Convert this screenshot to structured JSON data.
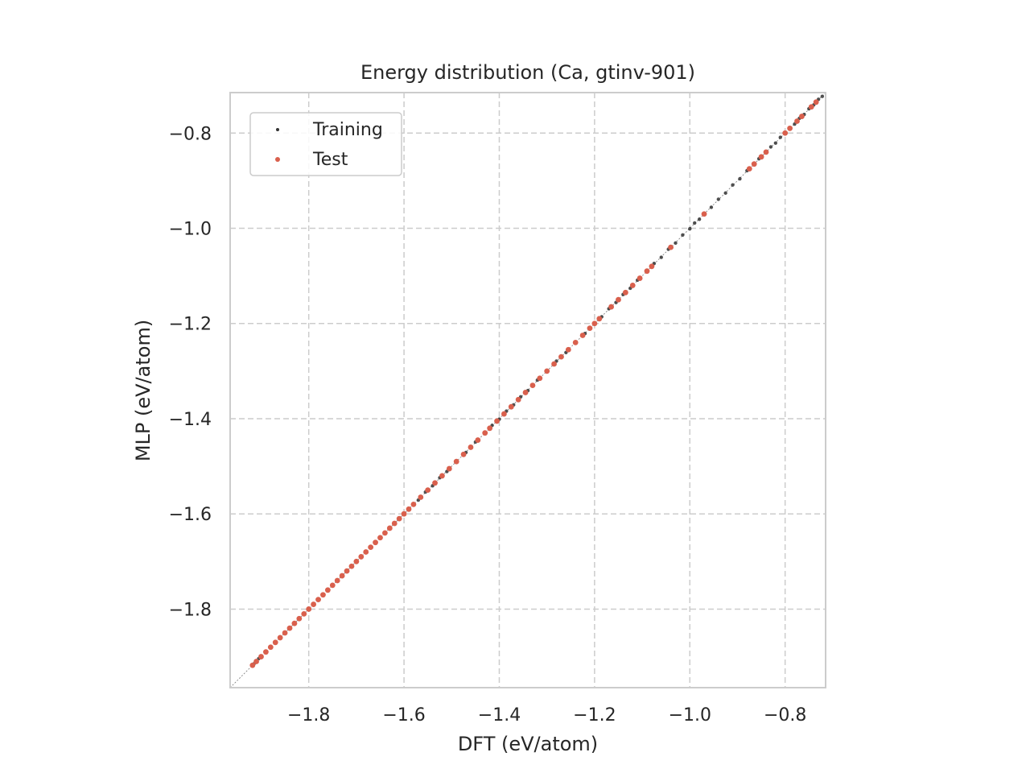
{
  "chart_data": {
    "type": "scatter",
    "title": "Energy distribution (Ca, gtinv-901)",
    "xlabel": "DFT (eV/atom)",
    "ylabel": "MLP (eV/atom)",
    "xlim": [
      -1.965,
      -0.715
    ],
    "ylim": [
      -1.965,
      -0.715
    ],
    "x_ticks": [
      -1.8,
      -1.6,
      -1.4,
      -1.2,
      -1.0,
      -0.8
    ],
    "y_ticks": [
      -1.8,
      -1.6,
      -1.4,
      -1.2,
      -1.0,
      -0.8
    ],
    "x_tick_labels": [
      "−1.8",
      "−1.6",
      "−1.4",
      "−1.2",
      "−1.0",
      "−0.8"
    ],
    "y_tick_labels": [
      "−1.8",
      "−1.6",
      "−1.4",
      "−1.2",
      "−1.0",
      "−0.8"
    ],
    "grid": true,
    "reference_line": "y = x",
    "legend_position": "top-left",
    "series": [
      {
        "name": "Training",
        "color": "#333333",
        "x": [
          -1.915,
          -1.905,
          -1.89,
          -1.87,
          -1.85,
          -1.83,
          -1.81,
          -1.79,
          -1.77,
          -1.75,
          -1.73,
          -1.71,
          -1.69,
          -1.67,
          -1.65,
          -1.63,
          -1.61,
          -1.59,
          -1.57,
          -1.555,
          -1.54,
          -1.525,
          -1.51,
          -1.49,
          -1.47,
          -1.45,
          -1.43,
          -1.415,
          -1.4,
          -1.385,
          -1.37,
          -1.355,
          -1.34,
          -1.32,
          -1.3,
          -1.28,
          -1.26,
          -1.24,
          -1.22,
          -1.2,
          -1.185,
          -1.17,
          -1.155,
          -1.14,
          -1.125,
          -1.11,
          -1.09,
          -1.075,
          -1.06,
          -1.045,
          -1.03,
          -1.015,
          -1.0,
          -0.99,
          -0.98,
          -0.97,
          -0.955,
          -0.94,
          -0.925,
          -0.91,
          -0.895,
          -0.88,
          -0.865,
          -0.855,
          -0.84,
          -0.83,
          -0.82,
          -0.81,
          -0.8,
          -0.79,
          -0.78,
          -0.77,
          -0.76,
          -0.75,
          -0.74,
          -0.73,
          -0.722
        ],
        "y": [
          -1.915,
          -1.904,
          -1.891,
          -1.869,
          -1.851,
          -1.829,
          -1.811,
          -1.789,
          -1.771,
          -1.749,
          -1.731,
          -1.709,
          -1.691,
          -1.669,
          -1.651,
          -1.629,
          -1.611,
          -1.589,
          -1.571,
          -1.554,
          -1.541,
          -1.524,
          -1.511,
          -1.489,
          -1.471,
          -1.449,
          -1.431,
          -1.414,
          -1.401,
          -1.384,
          -1.371,
          -1.354,
          -1.341,
          -1.319,
          -1.301,
          -1.279,
          -1.261,
          -1.239,
          -1.221,
          -1.199,
          -1.186,
          -1.169,
          -1.156,
          -1.139,
          -1.126,
          -1.109,
          -1.091,
          -1.074,
          -1.061,
          -1.044,
          -1.031,
          -1.014,
          -1.001,
          -0.989,
          -0.981,
          -0.969,
          -0.956,
          -0.939,
          -0.926,
          -0.909,
          -0.896,
          -0.879,
          -0.866,
          -0.854,
          -0.841,
          -0.829,
          -0.821,
          -0.809,
          -0.801,
          -0.789,
          -0.781,
          -0.769,
          -0.761,
          -0.749,
          -0.741,
          -0.729,
          -0.723
        ]
      },
      {
        "name": "Test",
        "color": "#d9604d",
        "x": [
          -1.918,
          -1.91,
          -1.9,
          -1.89,
          -1.88,
          -1.87,
          -1.86,
          -1.85,
          -1.84,
          -1.83,
          -1.82,
          -1.81,
          -1.8,
          -1.79,
          -1.78,
          -1.77,
          -1.76,
          -1.75,
          -1.74,
          -1.73,
          -1.72,
          -1.71,
          -1.7,
          -1.69,
          -1.68,
          -1.67,
          -1.66,
          -1.65,
          -1.64,
          -1.63,
          -1.62,
          -1.61,
          -1.6,
          -1.59,
          -1.58,
          -1.565,
          -1.55,
          -1.535,
          -1.52,
          -1.505,
          -1.49,
          -1.475,
          -1.46,
          -1.445,
          -1.43,
          -1.42,
          -1.405,
          -1.39,
          -1.375,
          -1.36,
          -1.345,
          -1.33,
          -1.315,
          -1.3,
          -1.285,
          -1.27,
          -1.255,
          -1.24,
          -1.225,
          -1.21,
          -1.2,
          -1.19,
          -1.165,
          -1.15,
          -1.135,
          -1.12,
          -1.105,
          -1.09,
          -1.08,
          -1.04,
          -0.97,
          -0.875,
          -0.865,
          -0.85,
          -0.84,
          -0.8,
          -0.79,
          -0.775,
          -0.765,
          -0.745,
          -0.735
        ],
        "y": [
          -1.918,
          -1.91,
          -1.9,
          -1.89,
          -1.88,
          -1.87,
          -1.86,
          -1.85,
          -1.84,
          -1.83,
          -1.82,
          -1.81,
          -1.8,
          -1.79,
          -1.78,
          -1.77,
          -1.76,
          -1.75,
          -1.74,
          -1.73,
          -1.72,
          -1.71,
          -1.7,
          -1.69,
          -1.68,
          -1.67,
          -1.66,
          -1.65,
          -1.64,
          -1.63,
          -1.62,
          -1.61,
          -1.6,
          -1.59,
          -1.58,
          -1.565,
          -1.55,
          -1.535,
          -1.52,
          -1.505,
          -1.49,
          -1.475,
          -1.46,
          -1.445,
          -1.43,
          -1.42,
          -1.405,
          -1.39,
          -1.375,
          -1.36,
          -1.345,
          -1.33,
          -1.315,
          -1.3,
          -1.285,
          -1.27,
          -1.255,
          -1.24,
          -1.225,
          -1.21,
          -1.2,
          -1.19,
          -1.165,
          -1.15,
          -1.135,
          -1.12,
          -1.105,
          -1.09,
          -1.08,
          -1.04,
          -0.97,
          -0.875,
          -0.865,
          -0.85,
          -0.84,
          -0.8,
          -0.79,
          -0.775,
          -0.765,
          -0.745,
          -0.735
        ]
      }
    ]
  }
}
